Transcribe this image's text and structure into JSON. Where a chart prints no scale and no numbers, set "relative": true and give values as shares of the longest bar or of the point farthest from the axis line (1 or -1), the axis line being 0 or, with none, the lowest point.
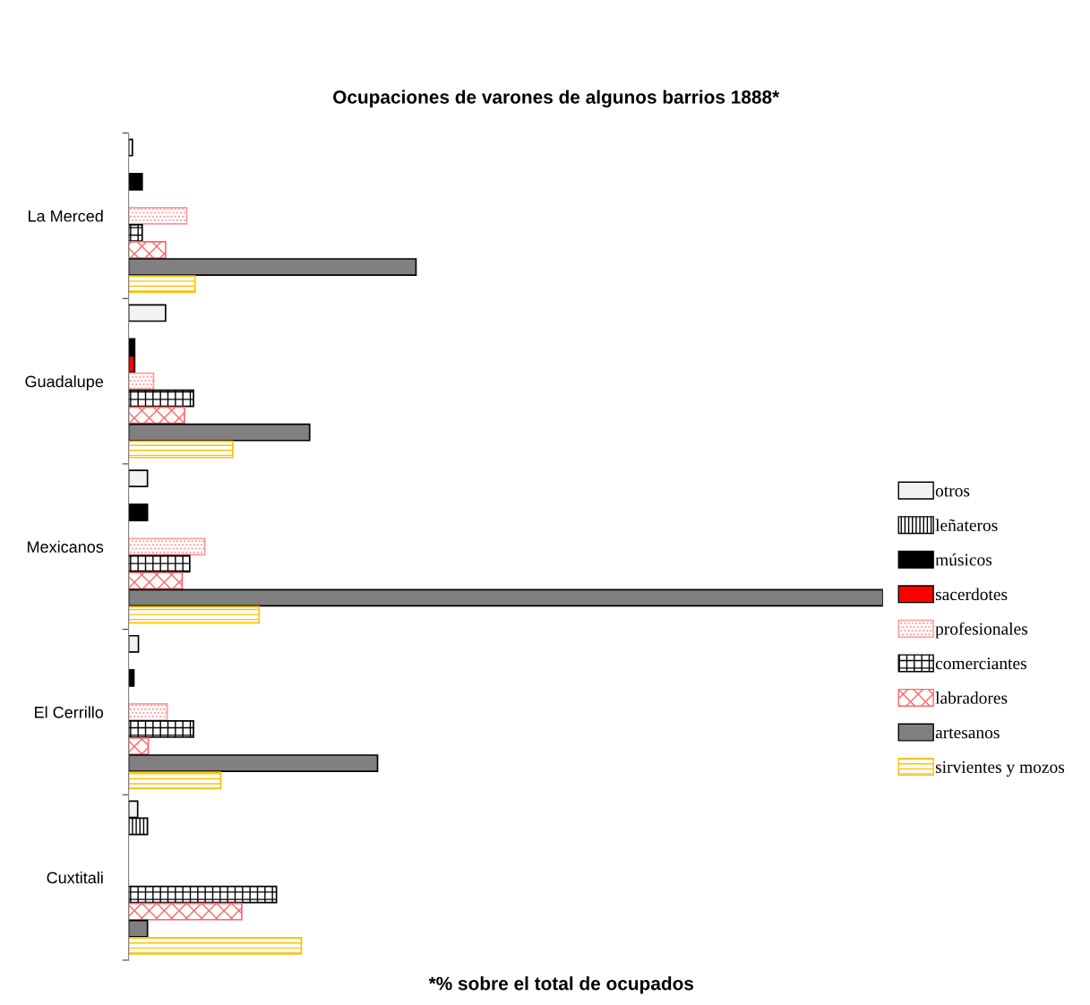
{
  "chart_data": {
    "type": "bar",
    "orientation": "horizontal",
    "relative": true,
    "title": "Ocupaciones de varones de algunos barrios 1888*",
    "annotations": [
      "*% sobre el total de ocupados"
    ],
    "legend": "right",
    "grid": false,
    "categories": [
      "La Merced",
      "Guadalupe",
      "Mexicanos",
      "El Cerrillo",
      "Cuxtitali"
    ],
    "series": [
      {
        "name": "otros",
        "color": "#f2f2f2",
        "values": [
          0.005,
          0.049,
          0.025,
          0.013,
          0.012
        ]
      },
      {
        "name": "leñateros",
        "color": "#000000",
        "values": [
          null,
          null,
          null,
          null,
          0.025
        ]
      },
      {
        "name": "músicos",
        "color": "#000000",
        "values": [
          0.018,
          0.008,
          0.025,
          0.007,
          null
        ]
      },
      {
        "name": "sacerdotes",
        "color": "#ff0000",
        "values": [
          null,
          0.008,
          null,
          null,
          null
        ]
      },
      {
        "name": "profesionales",
        "color": "#ff9999",
        "values": [
          0.077,
          0.033,
          0.101,
          0.051,
          null
        ]
      },
      {
        "name": "comerciantes",
        "color": "#000000",
        "values": [
          0.018,
          0.086,
          0.081,
          0.086,
          0.196
        ]
      },
      {
        "name": "labradores",
        "color": "#ff6666",
        "values": [
          0.049,
          0.074,
          0.071,
          0.026,
          0.15
        ]
      },
      {
        "name": "artesanos",
        "color": "#808080",
        "values": [
          0.381,
          0.24,
          1,
          0.33,
          0.025
        ]
      },
      {
        "name": "sirvientes y mozos",
        "color": "#ffc000",
        "values": [
          0.088,
          0.138,
          0.173,
          0.122,
          0.229
        ]
      }
    ]
  }
}
